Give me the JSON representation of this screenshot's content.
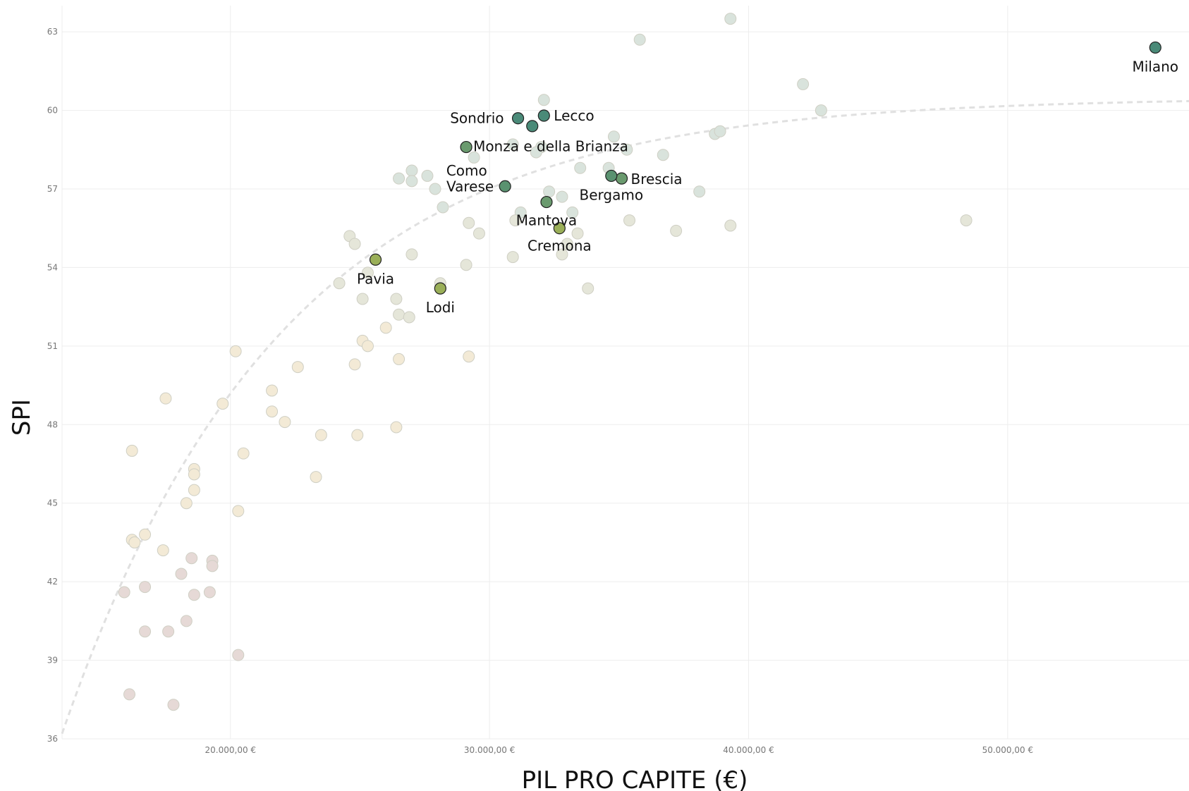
{
  "chart_data": {
    "type": "scatter",
    "title": "",
    "xlabel": "PIL PRO CAPITE (€)",
    "ylabel": "SPI",
    "xlim": [
      13500,
      57000
    ],
    "ylim": [
      36,
      64
    ],
    "x_ticks": [
      20000,
      30000,
      40000,
      50000
    ],
    "x_tick_labels": [
      "20.000,00 €",
      "30.000,00 €",
      "40.000,00 €",
      "50.000,00 €"
    ],
    "y_ticks": [
      36,
      39,
      42,
      45,
      48,
      51,
      54,
      57,
      60,
      63
    ],
    "y_tick_labels": [
      "36",
      "39",
      "42",
      "45",
      "48",
      "51",
      "54",
      "57",
      "60",
      "63"
    ],
    "grid": true,
    "legend": "none",
    "trendline": "logarithmic",
    "colors": {
      "highlight_dark": "#4a8a78",
      "highlight_mid": "#6a9a6e",
      "highlight_light": "#9aaf58",
      "background_points_high": "#d9e3dc",
      "background_points_mid": "#e5e6d9",
      "background_points_low": "#f3ead6",
      "background_points_bottom": "#e6d9d6"
    },
    "highlighted": [
      {
        "label": "Milano",
        "x": 55700,
        "y": 62.4,
        "color": "#4a8a78"
      },
      {
        "label": "Sondrio",
        "x": 31100,
        "y": 59.7,
        "color": "#4a8a78"
      },
      {
        "label": "Lecco",
        "x": 32100,
        "y": 59.8,
        "color": "#4a8a78"
      },
      {
        "label": "Como",
        "x": 31650,
        "y": 59.4,
        "color": "#4a8a78"
      },
      {
        "label": "Monza e della Brianza",
        "x": 29100,
        "y": 58.6,
        "color": "#6a9a6e"
      },
      {
        "label": "Varese",
        "x": 30600,
        "y": 57.1,
        "color": "#5a9270"
      },
      {
        "label": "Brescia",
        "x": 35100,
        "y": 57.4,
        "color": "#6a9a6e"
      },
      {
        "label": "Bergamo",
        "x": 34700,
        "y": 57.5,
        "color": "#5a9270"
      },
      {
        "label": "Mantova",
        "x": 32200,
        "y": 56.5,
        "color": "#6a9a6e"
      },
      {
        "label": "Cremona",
        "x": 32700,
        "y": 55.5,
        "color": "#9aaf58"
      },
      {
        "label": "Pavia",
        "x": 25600,
        "y": 54.3,
        "color": "#9aaf58"
      },
      {
        "label": "Lodi",
        "x": 28100,
        "y": 53.2,
        "color": "#9aaf58"
      }
    ],
    "others": [
      {
        "x": 39300,
        "y": 63.5
      },
      {
        "x": 35800,
        "y": 62.7
      },
      {
        "x": 42100,
        "y": 61.0
      },
      {
        "x": 42800,
        "y": 60.0
      },
      {
        "x": 32100,
        "y": 60.4
      },
      {
        "x": 34800,
        "y": 59.0
      },
      {
        "x": 35300,
        "y": 58.5
      },
      {
        "x": 36700,
        "y": 58.3
      },
      {
        "x": 38700,
        "y": 59.1
      },
      {
        "x": 38900,
        "y": 59.2
      },
      {
        "x": 30900,
        "y": 58.7
      },
      {
        "x": 32000,
        "y": 58.6
      },
      {
        "x": 31800,
        "y": 58.4
      },
      {
        "x": 29400,
        "y": 58.2
      },
      {
        "x": 33500,
        "y": 57.8
      },
      {
        "x": 34600,
        "y": 57.8
      },
      {
        "x": 27000,
        "y": 57.7
      },
      {
        "x": 27600,
        "y": 57.5
      },
      {
        "x": 26500,
        "y": 57.4
      },
      {
        "x": 27000,
        "y": 57.3
      },
      {
        "x": 27900,
        "y": 57.0
      },
      {
        "x": 32300,
        "y": 56.9
      },
      {
        "x": 38100,
        "y": 56.9
      },
      {
        "x": 32800,
        "y": 56.7
      },
      {
        "x": 28200,
        "y": 56.3
      },
      {
        "x": 33200,
        "y": 56.1
      },
      {
        "x": 31200,
        "y": 56.1
      },
      {
        "x": 31000,
        "y": 55.8
      },
      {
        "x": 29200,
        "y": 55.7
      },
      {
        "x": 35400,
        "y": 55.8
      },
      {
        "x": 48400,
        "y": 55.8
      },
      {
        "x": 39300,
        "y": 55.6
      },
      {
        "x": 37200,
        "y": 55.4
      },
      {
        "x": 29600,
        "y": 55.3
      },
      {
        "x": 33400,
        "y": 55.3
      },
      {
        "x": 33000,
        "y": 54.9
      },
      {
        "x": 32800,
        "y": 54.5
      },
      {
        "x": 24600,
        "y": 55.2
      },
      {
        "x": 24800,
        "y": 54.9
      },
      {
        "x": 27000,
        "y": 54.5
      },
      {
        "x": 30900,
        "y": 54.4
      },
      {
        "x": 29100,
        "y": 54.1
      },
      {
        "x": 25300,
        "y": 53.8
      },
      {
        "x": 24200,
        "y": 53.4
      },
      {
        "x": 28100,
        "y": 53.4
      },
      {
        "x": 33800,
        "y": 53.2
      },
      {
        "x": 25100,
        "y": 52.8
      },
      {
        "x": 26400,
        "y": 52.8
      },
      {
        "x": 26500,
        "y": 52.2
      },
      {
        "x": 26900,
        "y": 52.1
      },
      {
        "x": 26000,
        "y": 51.7
      },
      {
        "x": 25100,
        "y": 51.2
      },
      {
        "x": 25300,
        "y": 51.0
      },
      {
        "x": 20200,
        "y": 50.8
      },
      {
        "x": 29200,
        "y": 50.6
      },
      {
        "x": 26500,
        "y": 50.5
      },
      {
        "x": 24800,
        "y": 50.3
      },
      {
        "x": 22600,
        "y": 50.2
      },
      {
        "x": 21600,
        "y": 49.3
      },
      {
        "x": 17500,
        "y": 49.0
      },
      {
        "x": 19700,
        "y": 48.8
      },
      {
        "x": 21600,
        "y": 48.5
      },
      {
        "x": 22100,
        "y": 48.1
      },
      {
        "x": 26400,
        "y": 47.9
      },
      {
        "x": 23500,
        "y": 47.6
      },
      {
        "x": 24900,
        "y": 47.6
      },
      {
        "x": 16200,
        "y": 47.0
      },
      {
        "x": 20500,
        "y": 46.9
      },
      {
        "x": 18600,
        "y": 46.3
      },
      {
        "x": 18600,
        "y": 46.1
      },
      {
        "x": 23300,
        "y": 46.0
      },
      {
        "x": 18600,
        "y": 45.5
      },
      {
        "x": 18300,
        "y": 45.0
      },
      {
        "x": 20300,
        "y": 44.7
      },
      {
        "x": 16700,
        "y": 43.8
      },
      {
        "x": 16200,
        "y": 43.6
      },
      {
        "x": 16300,
        "y": 43.5
      },
      {
        "x": 17400,
        "y": 43.2
      },
      {
        "x": 18500,
        "y": 42.9
      },
      {
        "x": 19300,
        "y": 42.8
      },
      {
        "x": 19300,
        "y": 42.6
      },
      {
        "x": 18100,
        "y": 42.3
      },
      {
        "x": 16700,
        "y": 41.8
      },
      {
        "x": 15900,
        "y": 41.6
      },
      {
        "x": 19200,
        "y": 41.6
      },
      {
        "x": 18600,
        "y": 41.5
      },
      {
        "x": 18300,
        "y": 40.5
      },
      {
        "x": 16700,
        "y": 40.1
      },
      {
        "x": 17600,
        "y": 40.1
      },
      {
        "x": 20300,
        "y": 39.2
      },
      {
        "x": 16100,
        "y": 37.7
      },
      {
        "x": 17800,
        "y": 37.3
      }
    ]
  }
}
